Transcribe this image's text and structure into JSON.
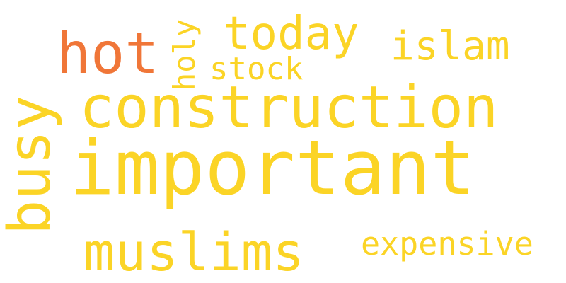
{
  "cloud": {
    "words": [
      {
        "text": "important",
        "color": "#fbd426"
      },
      {
        "text": "construction",
        "color": "#fbd426"
      },
      {
        "text": "muslims",
        "color": "#fbd426"
      },
      {
        "text": "busy",
        "color": "#fbd426"
      },
      {
        "text": "hot",
        "color": "#f07638"
      },
      {
        "text": "today",
        "color": "#fbd426"
      },
      {
        "text": "islam",
        "color": "#fbd426"
      },
      {
        "text": "stock",
        "color": "#fbd426"
      },
      {
        "text": "holy",
        "color": "#fbd426"
      },
      {
        "text": "expensive",
        "color": "#fbd426"
      }
    ]
  }
}
